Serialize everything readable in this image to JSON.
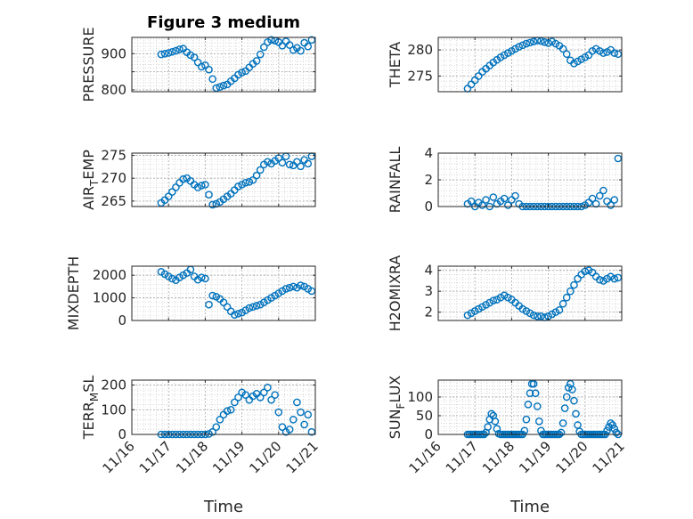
{
  "figure": {
    "title": "Figure 3 medium",
    "xlabel": "Time",
    "xticks": [
      "11/16",
      "11/17",
      "11/18",
      "11/19",
      "11/20",
      "11/21"
    ],
    "marker_color": "#0072BD"
  },
  "chart_data": [
    {
      "type": "scatter",
      "ylabel": "PRESSURE",
      "ylabel_sub": "",
      "xlim": [
        16,
        21
      ],
      "ylim": [
        795,
        945
      ],
      "yticks": [
        800,
        850,
        900
      ],
      "yticklabels": [
        "800",
        "",
        "900"
      ],
      "grid": "major+minor",
      "x": [
        16.8,
        16.9,
        17.0,
        17.1,
        17.2,
        17.3,
        17.4,
        17.5,
        17.6,
        17.7,
        17.8,
        17.9,
        18.0,
        18.1,
        18.2,
        18.3,
        18.4,
        18.5,
        18.6,
        18.7,
        18.8,
        18.9,
        19.0,
        19.1,
        19.2,
        19.3,
        19.4,
        19.5,
        19.6,
        19.7,
        19.8,
        19.9,
        20.0,
        20.1,
        20.2,
        20.3,
        20.4,
        20.5,
        20.6,
        20.7,
        20.8,
        20.9
      ],
      "y": [
        898,
        900,
        902,
        905,
        908,
        912,
        914,
        904,
        896,
        890,
        876,
        864,
        868,
        856,
        830,
        805,
        808,
        812,
        815,
        824,
        832,
        842,
        848,
        852,
        862,
        872,
        880,
        898,
        918,
        932,
        938,
        936,
        932,
        922,
        934,
        924,
        910,
        916,
        908,
        930,
        920,
        938
      ]
    },
    {
      "type": "scatter",
      "ylabel": "THETA",
      "ylabel_sub": "",
      "xlim": [
        16,
        21
      ],
      "ylim": [
        272,
        282.4
      ],
      "yticks": [
        275,
        280
      ],
      "yticklabels": [
        "275",
        "280"
      ],
      "grid": "major+minor",
      "x": [
        16.8,
        16.9,
        17.0,
        17.1,
        17.2,
        17.3,
        17.4,
        17.5,
        17.6,
        17.7,
        17.8,
        17.9,
        18.0,
        18.1,
        18.2,
        18.3,
        18.4,
        18.5,
        18.6,
        18.7,
        18.8,
        18.9,
        19.0,
        19.1,
        19.2,
        19.3,
        19.4,
        19.5,
        19.6,
        19.7,
        19.8,
        19.9,
        20.0,
        20.1,
        20.2,
        20.3,
        20.4,
        20.5,
        20.6,
        20.7,
        20.8,
        20.9
      ],
      "y": [
        272.6,
        273.4,
        274.2,
        275.0,
        275.8,
        276.4,
        277.0,
        277.6,
        278.1,
        278.6,
        279.0,
        279.4,
        279.8,
        280.2,
        280.6,
        280.9,
        281.2,
        281.4,
        281.6,
        281.8,
        281.7,
        281.5,
        281.3,
        281.6,
        281.2,
        280.8,
        280.2,
        279.2,
        278.0,
        277.4,
        277.8,
        278.2,
        278.6,
        279.0,
        279.8,
        280.2,
        279.8,
        279.4,
        279.6,
        280.0,
        279.4,
        279.2
      ]
    },
    {
      "type": "scatter",
      "ylabel": "AIR",
      "ylabel_sub": "T",
      "ylabel_rest": "EMP",
      "xlim": [
        16,
        21
      ],
      "ylim": [
        263.8,
        275.5
      ],
      "yticks": [
        265,
        270,
        275
      ],
      "yticklabels": [
        "265",
        "270",
        "275"
      ],
      "grid": "major+minor",
      "x": [
        16.8,
        16.9,
        17.0,
        17.1,
        17.2,
        17.3,
        17.4,
        17.5,
        17.6,
        17.7,
        17.8,
        17.9,
        18.0,
        18.1,
        18.2,
        18.3,
        18.4,
        18.5,
        18.6,
        18.7,
        18.8,
        18.9,
        19.0,
        19.1,
        19.2,
        19.3,
        19.4,
        19.5,
        19.6,
        19.7,
        19.8,
        19.9,
        20.0,
        20.1,
        20.2,
        20.3,
        20.4,
        20.5,
        20.6,
        20.7,
        20.8,
        20.9
      ],
      "y": [
        264.6,
        265.2,
        266.0,
        267.0,
        268.0,
        269.0,
        269.8,
        270.0,
        269.4,
        268.6,
        268.0,
        268.4,
        268.6,
        266.4,
        264.2,
        264.4,
        264.8,
        265.4,
        266.0,
        266.6,
        267.4,
        268.2,
        268.6,
        269.0,
        269.2,
        269.6,
        270.6,
        271.8,
        273.0,
        273.6,
        273.2,
        273.8,
        274.4,
        273.4,
        274.8,
        273.0,
        272.8,
        273.6,
        272.6,
        274.0,
        273.2,
        274.8
      ]
    },
    {
      "type": "scatter",
      "ylabel": "RAINFALL",
      "ylabel_sub": "",
      "xlim": [
        16,
        21
      ],
      "ylim": [
        0,
        4
      ],
      "yticks": [
        0,
        2,
        4
      ],
      "yticklabels": [
        "0",
        "2",
        "4"
      ],
      "grid": "major+minor",
      "x": [
        16.8,
        16.9,
        17.0,
        17.1,
        17.2,
        17.3,
        17.4,
        17.5,
        17.6,
        17.7,
        17.8,
        17.9,
        18.0,
        18.1,
        18.2,
        18.3,
        18.4,
        18.5,
        18.6,
        18.7,
        18.8,
        18.9,
        19.0,
        19.1,
        19.2,
        19.3,
        19.4,
        19.5,
        19.6,
        19.7,
        19.8,
        19.9,
        20.0,
        20.1,
        20.2,
        20.3,
        20.4,
        20.5,
        20.6,
        20.7,
        20.8,
        20.9
      ],
      "y": [
        0.2,
        0.4,
        0.0,
        0.3,
        0.1,
        0.5,
        0.0,
        0.7,
        0.2,
        0.4,
        0.6,
        0.1,
        0.5,
        0.8,
        0.2,
        0.0,
        0.0,
        0.0,
        0.0,
        0.0,
        0.0,
        0.0,
        0.0,
        0.0,
        0.0,
        0.0,
        0.0,
        0.0,
        0.0,
        0.0,
        0.0,
        0.0,
        0.1,
        0.3,
        0.6,
        0.2,
        0.8,
        1.2,
        0.4,
        0.1,
        0.5,
        3.6
      ]
    },
    {
      "type": "scatter",
      "ylabel": "MIXDEPTH",
      "ylabel_sub": "",
      "xlim": [
        16,
        21
      ],
      "ylim": [
        0,
        2400
      ],
      "yticks": [
        0,
        1000,
        2000
      ],
      "yticklabels": [
        "0",
        "1000",
        "2000"
      ],
      "grid": "major+minor",
      "x": [
        16.8,
        16.9,
        17.0,
        17.1,
        17.2,
        17.3,
        17.4,
        17.5,
        17.6,
        17.7,
        17.8,
        17.9,
        18.0,
        18.1,
        18.2,
        18.3,
        18.4,
        18.5,
        18.6,
        18.7,
        18.8,
        18.9,
        19.0,
        19.1,
        19.2,
        19.3,
        19.4,
        19.5,
        19.6,
        19.7,
        19.8,
        19.9,
        20.0,
        20.1,
        20.2,
        20.3,
        20.4,
        20.5,
        20.6,
        20.7,
        20.8,
        20.9
      ],
      "y": [
        2150,
        2050,
        1950,
        1850,
        1780,
        1900,
        2000,
        2100,
        2250,
        1950,
        1800,
        1900,
        1850,
        700,
        1100,
        1050,
        950,
        800,
        600,
        400,
        250,
        300,
        350,
        450,
        550,
        600,
        650,
        700,
        800,
        900,
        1000,
        1100,
        1200,
        1300,
        1400,
        1450,
        1500,
        1450,
        1550,
        1500,
        1400,
        1300
      ]
    },
    {
      "type": "scatter",
      "ylabel": "H2OMIXRA",
      "ylabel_sub": "",
      "xlim": [
        16,
        21
      ],
      "ylim": [
        1.6,
        4.2
      ],
      "yticks": [
        2,
        3,
        4
      ],
      "yticklabels": [
        "2",
        "3",
        "4"
      ],
      "grid": "major+minor",
      "x": [
        16.8,
        16.9,
        17.0,
        17.1,
        17.2,
        17.3,
        17.4,
        17.5,
        17.6,
        17.7,
        17.8,
        17.9,
        18.0,
        18.1,
        18.2,
        18.3,
        18.4,
        18.5,
        18.6,
        18.7,
        18.8,
        18.9,
        19.0,
        19.1,
        19.2,
        19.3,
        19.4,
        19.5,
        19.6,
        19.7,
        19.8,
        19.9,
        20.0,
        20.1,
        20.2,
        20.3,
        20.4,
        20.5,
        20.6,
        20.7,
        20.8,
        20.9
      ],
      "y": [
        1.85,
        1.95,
        2.05,
        2.15,
        2.25,
        2.35,
        2.45,
        2.55,
        2.6,
        2.7,
        2.8,
        2.7,
        2.6,
        2.45,
        2.3,
        2.15,
        2.05,
        1.95,
        1.85,
        1.8,
        1.8,
        1.75,
        1.8,
        1.9,
        2.0,
        2.1,
        2.4,
        2.7,
        3.0,
        3.3,
        3.6,
        3.8,
        3.95,
        4.0,
        3.9,
        3.7,
        3.55,
        3.5,
        3.6,
        3.7,
        3.6,
        3.65
      ]
    },
    {
      "type": "scatter",
      "ylabel": "TERR",
      "ylabel_sub": "M",
      "ylabel_rest": "SL",
      "xlim": [
        16,
        21
      ],
      "ylim": [
        0,
        220
      ],
      "yticks": [
        0,
        100,
        200
      ],
      "yticklabels": [
        "0",
        "100",
        "200"
      ],
      "grid": "major+minor",
      "x": [
        16.8,
        16.9,
        17.0,
        17.1,
        17.2,
        17.3,
        17.4,
        17.5,
        17.6,
        17.7,
        17.8,
        17.9,
        18.0,
        18.1,
        18.2,
        18.3,
        18.4,
        18.5,
        18.6,
        18.7,
        18.8,
        18.9,
        19.0,
        19.1,
        19.2,
        19.3,
        19.4,
        19.5,
        19.6,
        19.7,
        19.8,
        19.9,
        20.0,
        20.1,
        20.2,
        20.3,
        20.4,
        20.5,
        20.6,
        20.7,
        20.8,
        20.9
      ],
      "y": [
        0,
        0,
        0,
        0,
        0,
        0,
        0,
        0,
        0,
        0,
        0,
        0,
        0,
        2,
        10,
        30,
        60,
        80,
        95,
        100,
        130,
        150,
        170,
        160,
        140,
        155,
        165,
        150,
        170,
        190,
        140,
        160,
        90,
        30,
        10,
        20,
        60,
        130,
        90,
        40,
        80,
        10
      ]
    },
    {
      "type": "scatter",
      "ylabel": "SUN",
      "ylabel_sub": "F",
      "ylabel_rest": "LUX",
      "xlim": [
        16,
        21
      ],
      "ylim": [
        0,
        145
      ],
      "yticks": [
        0,
        50,
        100
      ],
      "yticklabels": [
        "0",
        "50",
        "100"
      ],
      "grid": "major+minor",
      "x": [
        16.8,
        16.85,
        16.9,
        16.95,
        17.0,
        17.05,
        17.1,
        17.15,
        17.2,
        17.25,
        17.3,
        17.35,
        17.4,
        17.45,
        17.5,
        17.55,
        17.6,
        17.65,
        17.7,
        17.75,
        17.8,
        17.85,
        17.9,
        17.95,
        18.0,
        18.05,
        18.1,
        18.15,
        18.2,
        18.25,
        18.3,
        18.35,
        18.4,
        18.45,
        18.5,
        18.55,
        18.6,
        18.65,
        18.7,
        18.75,
        18.8,
        18.85,
        18.9,
        18.95,
        19.0,
        19.05,
        19.1,
        19.15,
        19.2,
        19.25,
        19.3,
        19.35,
        19.4,
        19.45,
        19.5,
        19.55,
        19.6,
        19.65,
        19.7,
        19.75,
        19.8,
        19.85,
        19.9,
        19.95,
        20.0,
        20.05,
        20.1,
        20.15,
        20.2,
        20.25,
        20.3,
        20.35,
        20.4,
        20.45,
        20.5,
        20.55,
        20.6,
        20.65,
        20.7,
        20.75,
        20.8,
        20.85,
        20.9
      ],
      "y": [
        0,
        0,
        0,
        0,
        0,
        0,
        0,
        0,
        0,
        0,
        5,
        20,
        40,
        55,
        50,
        35,
        15,
        2,
        0,
        0,
        0,
        0,
        0,
        0,
        0,
        0,
        0,
        0,
        0,
        0,
        0,
        10,
        40,
        80,
        110,
        135,
        135,
        110,
        75,
        35,
        10,
        0,
        0,
        0,
        0,
        0,
        0,
        0,
        0,
        0,
        0,
        5,
        30,
        70,
        100,
        125,
        135,
        120,
        90,
        55,
        25,
        8,
        0,
        0,
        0,
        0,
        0,
        0,
        0,
        0,
        0,
        0,
        0,
        0,
        0,
        0,
        10,
        20,
        30,
        25,
        15,
        5,
        0
      ]
    }
  ]
}
